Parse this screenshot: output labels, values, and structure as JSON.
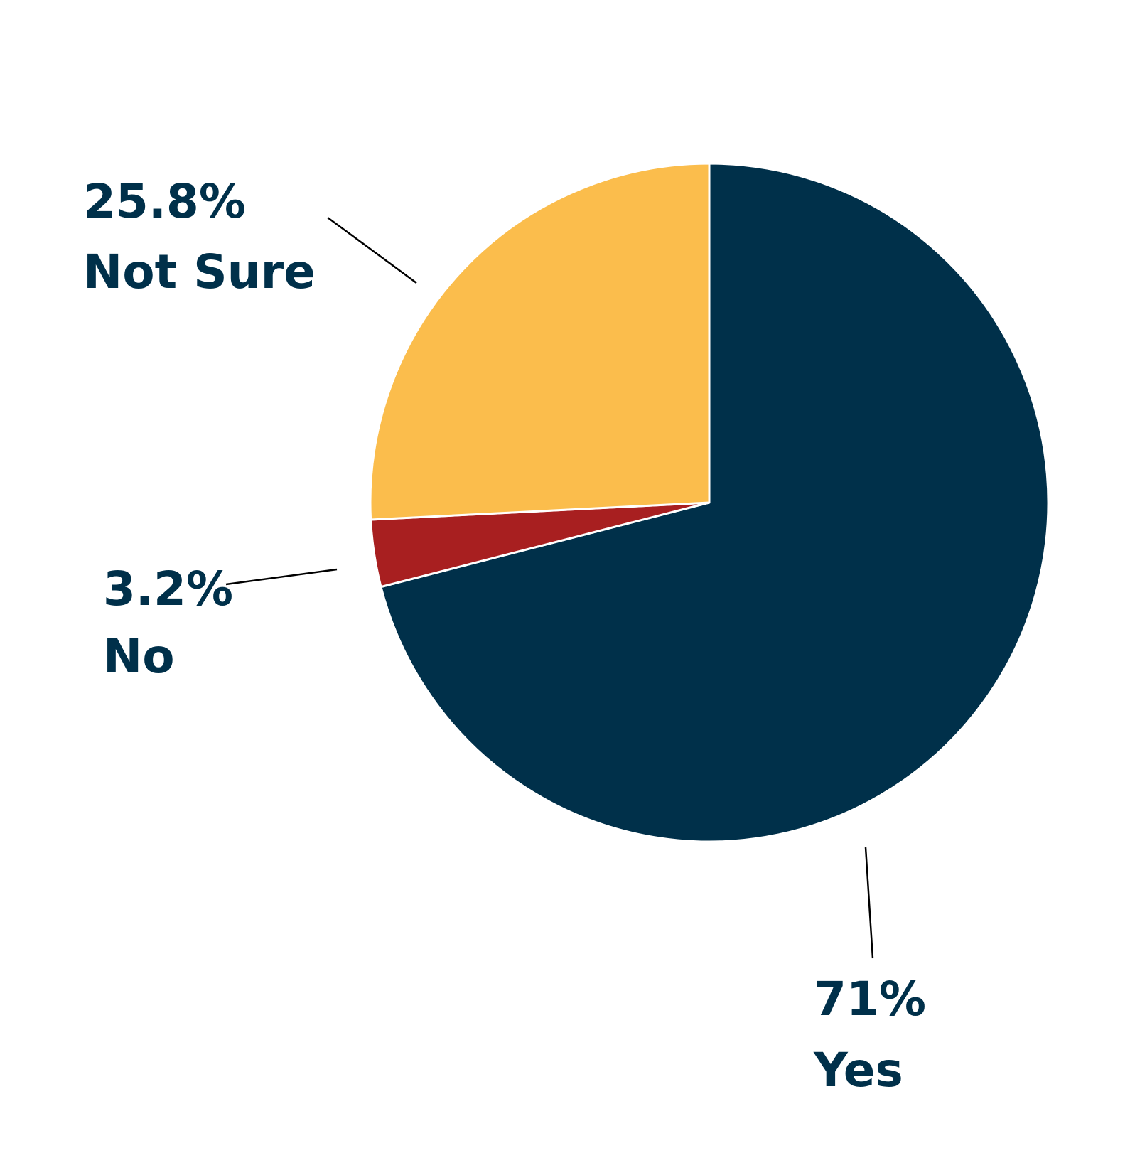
{
  "chart_data": {
    "type": "pie",
    "title": "",
    "slices": [
      {
        "label": "Yes",
        "value": 71,
        "value_label": "71%",
        "color": "#00304a"
      },
      {
        "label": "No",
        "value": 3.2,
        "value_label": "3.2%",
        "color": "#a81f20"
      },
      {
        "label": "Not Sure",
        "value": 25.8,
        "value_label": "25.8%",
        "color": "#fbbd4c"
      }
    ],
    "start_angle": "12 o'clock",
    "direction": "clockwise",
    "legend": "none",
    "label_style": "outside labels with leader lines"
  }
}
